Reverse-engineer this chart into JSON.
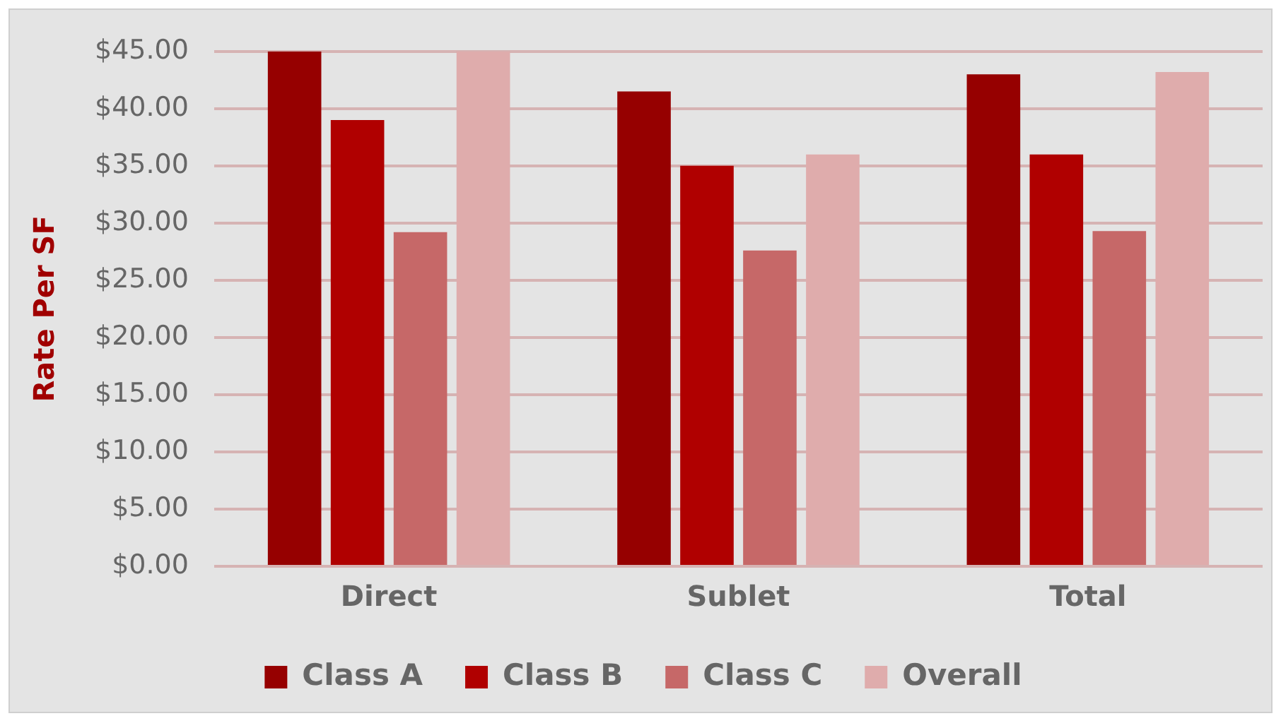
{
  "chart_data": {
    "type": "bar",
    "ylabel": "Rate Per SF",
    "categories": [
      "Direct",
      "Sublet",
      "Total"
    ],
    "series": [
      {
        "name": "Class A",
        "color": "#960000",
        "values": [
          45.0,
          41.5,
          43.0
        ]
      },
      {
        "name": "Class B",
        "color": "#b00000",
        "values": [
          39.0,
          35.0,
          36.0
        ]
      },
      {
        "name": "Class C",
        "color": "#c66868",
        "values": [
          29.2,
          27.6,
          29.3
        ]
      },
      {
        "name": "Overall",
        "color": "#dfacac",
        "values": [
          45.0,
          36.0,
          43.2
        ]
      }
    ],
    "ylim": [
      0,
      45
    ],
    "yticks": [
      {
        "value": 0,
        "label": "$0.00"
      },
      {
        "value": 5,
        "label": "$5.00"
      },
      {
        "value": 10,
        "label": "$10.00"
      },
      {
        "value": 15,
        "label": "$15.00"
      },
      {
        "value": 20,
        "label": "$20.00"
      },
      {
        "value": 25,
        "label": "$25.00"
      },
      {
        "value": 30,
        "label": "$30.00"
      },
      {
        "value": 35,
        "label": "$35.00"
      },
      {
        "value": 40,
        "label": "$40.00"
      },
      {
        "value": 45,
        "label": "$45.00"
      }
    ],
    "grid": "y",
    "legend": "bottom"
  }
}
